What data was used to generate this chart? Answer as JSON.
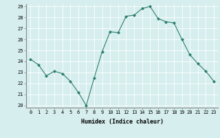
{
  "x": [
    0,
    1,
    2,
    3,
    4,
    5,
    6,
    7,
    8,
    9,
    10,
    11,
    12,
    13,
    14,
    15,
    16,
    17,
    18,
    19,
    20,
    21,
    22,
    23
  ],
  "y": [
    24.2,
    23.7,
    22.7,
    23.1,
    22.9,
    22.2,
    21.2,
    20.0,
    22.5,
    24.9,
    26.7,
    26.6,
    28.1,
    28.2,
    28.8,
    29.0,
    27.9,
    27.6,
    27.5,
    26.0,
    24.6,
    23.8,
    23.1,
    22.2
  ],
  "line_color": "#2e7d6e",
  "marker": "D",
  "marker_size": 2.0,
  "bg_color": "#d6eeee",
  "grid_color": "#ffffff",
  "xlabel": "Humidex (Indice chaleur)",
  "ylabel": "",
  "ylim": [
    20,
    29
  ],
  "xlim": [
    -0.5,
    23.5
  ],
  "yticks": [
    20,
    21,
    22,
    23,
    24,
    25,
    26,
    27,
    28,
    29
  ],
  "xticks": [
    0,
    1,
    2,
    3,
    4,
    5,
    6,
    7,
    8,
    9,
    10,
    11,
    12,
    13,
    14,
    15,
    16,
    17,
    18,
    19,
    20,
    21,
    22,
    23
  ],
  "label_fontsize": 5.5,
  "tick_fontsize": 5.0,
  "xlabel_fontsize": 6.0,
  "linewidth": 0.8
}
